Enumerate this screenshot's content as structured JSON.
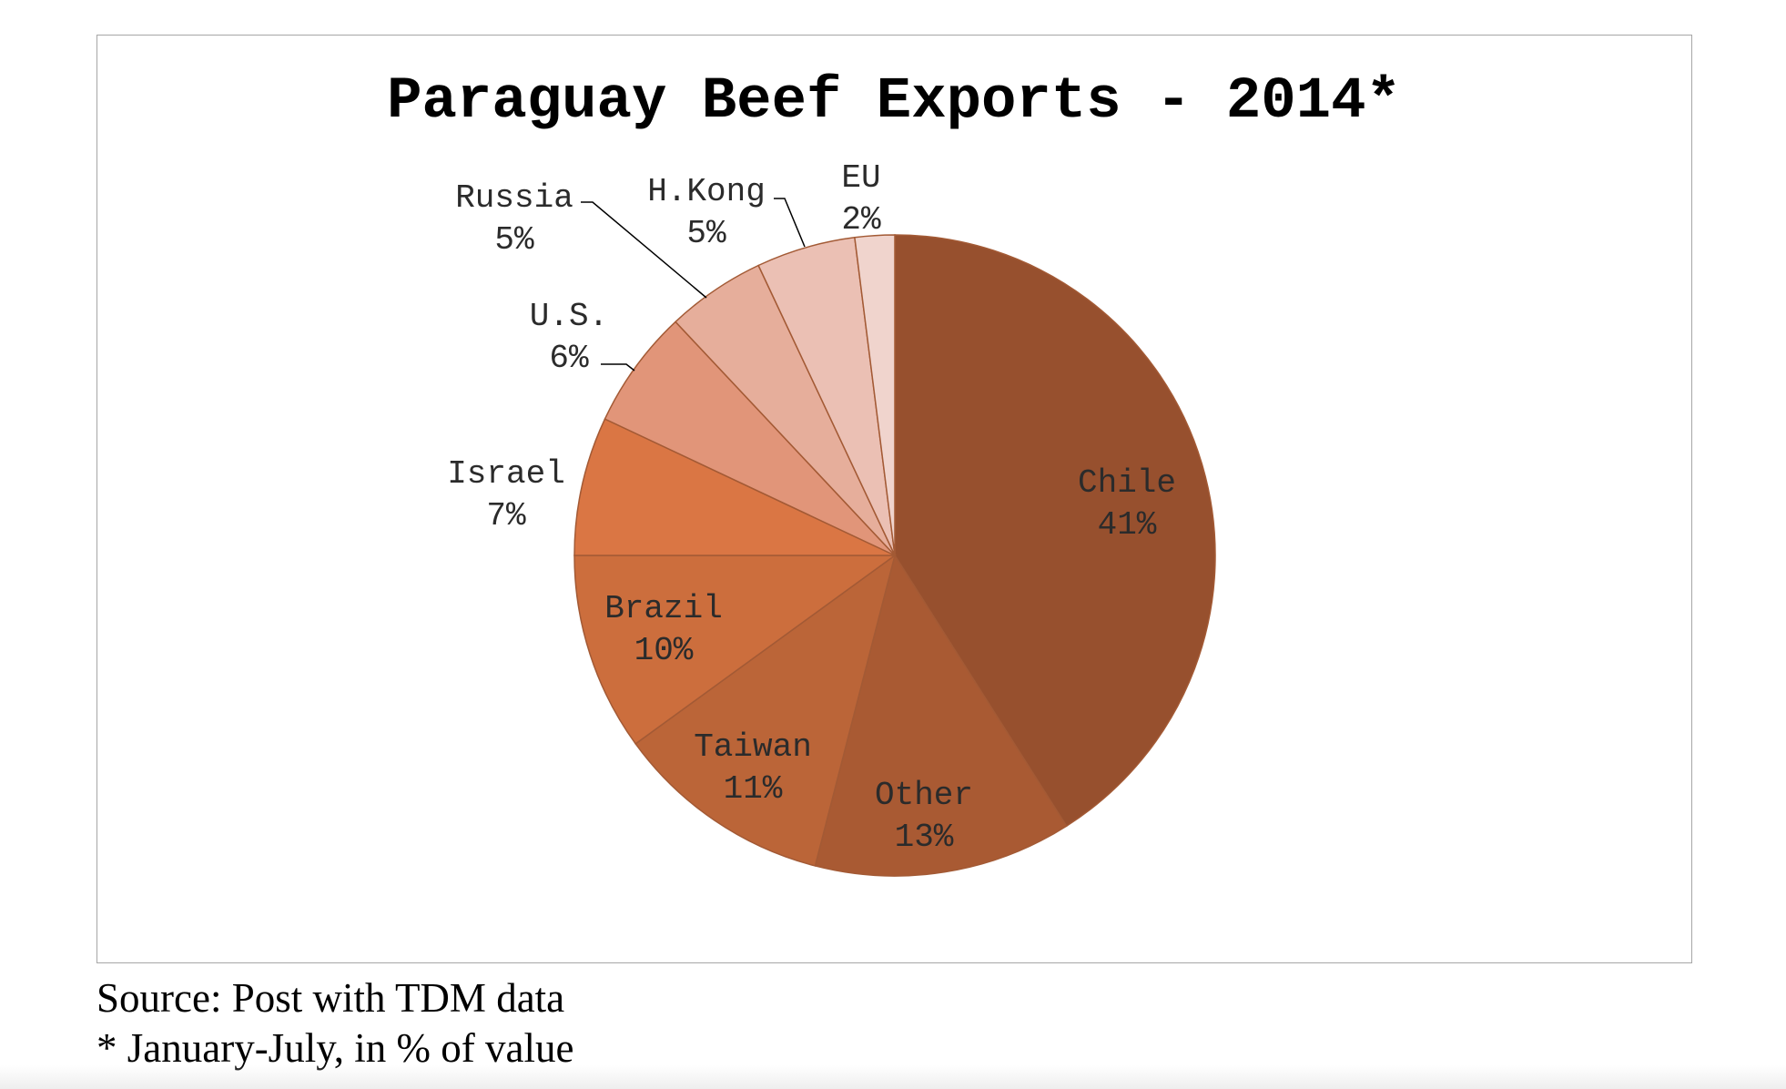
{
  "chart_data": {
    "type": "pie",
    "title": "Paraguay Beef Exports - 2014*",
    "slices": [
      {
        "label": "Chile",
        "value": 41,
        "value_label": "41%",
        "color": "#97502e"
      },
      {
        "label": "Other",
        "value": 13,
        "value_label": "13%",
        "color": "#a95a33"
      },
      {
        "label": "Taiwan",
        "value": 11,
        "value_label": "11%",
        "color": "#bb6538"
      },
      {
        "label": "Brazil",
        "value": 10,
        "value_label": "10%",
        "color": "#cc6e3d"
      },
      {
        "label": "Israel",
        "value": 7,
        "value_label": "7%",
        "color": "#da7644"
      },
      {
        "label": "U.S.",
        "value": 6,
        "value_label": "6%",
        "color": "#e19579"
      },
      {
        "label": "Russia",
        "value": 5,
        "value_label": "5%",
        "color": "#e6ae9b"
      },
      {
        "label": "H.Kong",
        "value": 5,
        "value_label": "5%",
        "color": "#ebc0b4"
      },
      {
        "label": "EU",
        "value": 2,
        "value_label": "2%",
        "color": "#f0d4cd"
      }
    ]
  },
  "notes": {
    "source": "Source: Post with TDM data",
    "period": "* January-July, in % of value"
  }
}
